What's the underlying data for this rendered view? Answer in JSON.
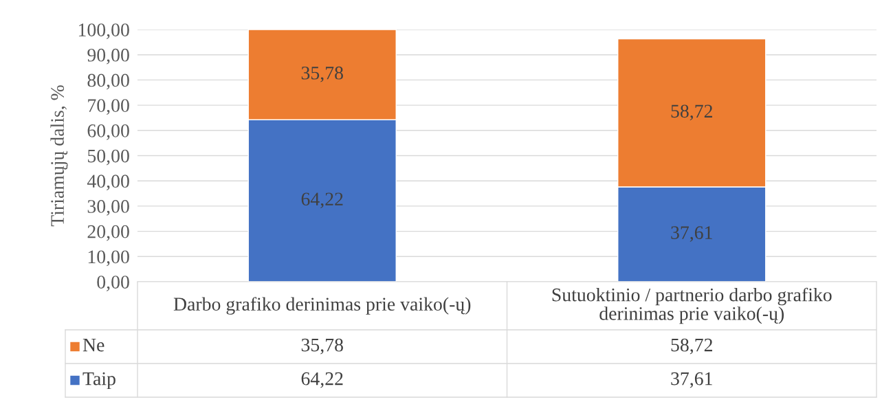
{
  "chart_data": {
    "type": "bar",
    "stacked": true,
    "ylabel": "Tiriamųjų dalis, %",
    "categories": [
      "Darbo grafiko derinimas prie vaiko(-ų)",
      "Sutuoktinio / partnerio darbo grafiko derinimas prie vaiko(-ų)"
    ],
    "series": [
      {
        "name": "Taip",
        "color": "#4472c4",
        "values": [
          64.22,
          37.61
        ],
        "value_labels": [
          "64,22",
          "37,61"
        ]
      },
      {
        "name": "Ne",
        "color": "#ed7d31",
        "values": [
          35.78,
          58.72
        ],
        "value_labels": [
          "35,78",
          "58,72"
        ]
      }
    ],
    "ylim": [
      0,
      100
    ],
    "yticks": [
      {
        "value": 0,
        "label": "0,00"
      },
      {
        "value": 10,
        "label": "10,00"
      },
      {
        "value": 20,
        "label": "20,00"
      },
      {
        "value": 30,
        "label": "30,00"
      },
      {
        "value": 40,
        "label": "40,00"
      },
      {
        "value": 50,
        "label": "50,00"
      },
      {
        "value": 60,
        "label": "60,00"
      },
      {
        "value": 70,
        "label": "70,00"
      },
      {
        "value": 80,
        "label": "80,00"
      },
      {
        "value": 90,
        "label": "90,00"
      },
      {
        "value": 100,
        "label": "100,00"
      }
    ],
    "grid": "y",
    "legend": "bottom"
  }
}
